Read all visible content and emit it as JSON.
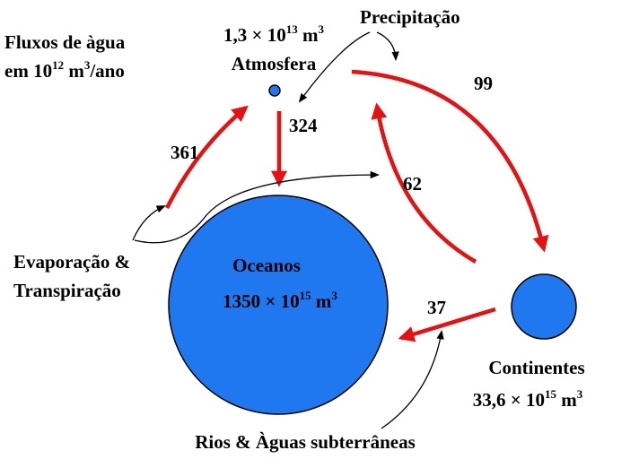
{
  "legend": {
    "line1": "Fluxos de àgua",
    "line2": {
      "base": "em 10",
      "exp": "12",
      "unit": " m",
      "unit_exp": "3",
      "suffix": "/ano"
    }
  },
  "nodes": [
    {
      "label": "Atmosfera",
      "amount": {
        "mantissa": "1,3 × 10",
        "exp": "13",
        "unit": " m",
        "unit_exp": "3"
      }
    },
    {
      "label": "Oceanos",
      "amount": {
        "mantissa": "1350 × 10",
        "exp": "15",
        "unit": " m",
        "unit_exp": "3"
      }
    },
    {
      "label": "Continentes",
      "amount": {
        "mantissa": "33,6 × 10",
        "exp": "15",
        "unit": " m",
        "unit_exp": "3"
      }
    }
  ],
  "flows": [
    361,
    324,
    99,
    62,
    37
  ],
  "processes": {
    "precipitation": "Precipitação",
    "evaporation": [
      "Evaporação &",
      "Transpiração"
    ],
    "runoff": "Rios & Àguas subterrâneas"
  }
}
